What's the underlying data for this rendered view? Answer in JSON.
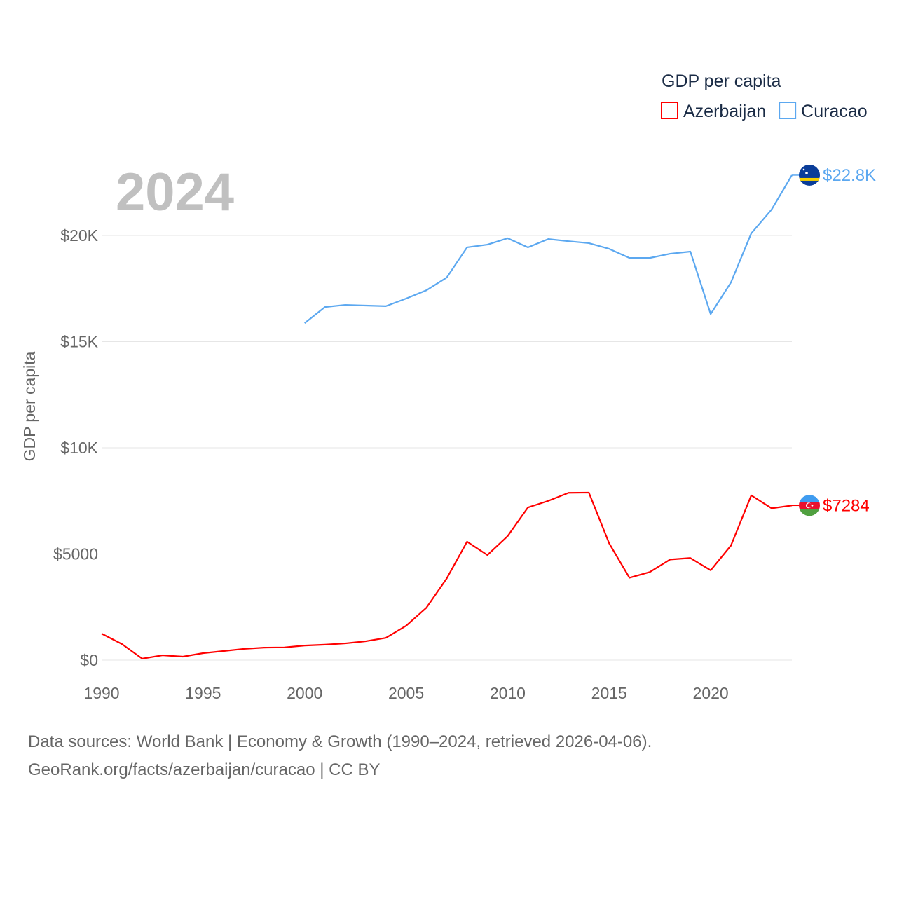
{
  "chart_data": {
    "type": "line",
    "title": "",
    "year_label": "2024",
    "ylabel": "GDP per capita",
    "xlabel": "",
    "xlim": [
      1990,
      2024
    ],
    "ylim": [
      0,
      23000
    ],
    "x_ticks": [
      "1990",
      "1995",
      "2000",
      "2005",
      "2010",
      "2015",
      "2020"
    ],
    "x_tick_values": [
      1990,
      1995,
      2000,
      2005,
      2010,
      2015,
      2020
    ],
    "y_ticks": [
      "$0",
      "$5000",
      "$10K",
      "$15K",
      "$20K"
    ],
    "y_tick_values": [
      0,
      5000,
      10000,
      15000,
      20000
    ],
    "grid": true,
    "legend": {
      "title": "GDP per capita",
      "placement": "top-right"
    },
    "series": [
      {
        "name": "Azerbaijan",
        "color": "#ff0000",
        "end_label": "$7284",
        "flag": "azerbaijan-flag",
        "x": [
          1990,
          1991,
          1992,
          1993,
          1994,
          1995,
          1996,
          1997,
          1998,
          1999,
          2000,
          2001,
          2002,
          2003,
          2004,
          2005,
          2006,
          2007,
          2008,
          2009,
          2010,
          2011,
          2012,
          2013,
          2014,
          2015,
          2016,
          2017,
          2018,
          2019,
          2020,
          2021,
          2022,
          2023,
          2024
        ],
        "values": [
          1250,
          760,
          70,
          230,
          165,
          330,
          430,
          530,
          590,
          600,
          690,
          730,
          790,
          890,
          1050,
          1620,
          2470,
          3850,
          5580,
          4950,
          5840,
          7190,
          7500,
          7880,
          7890,
          5500,
          3880,
          4150,
          4740,
          4810,
          4230,
          5400,
          7760,
          7150,
          7284
        ]
      },
      {
        "name": "Curacao",
        "color": "#5ca8f0",
        "end_label": "$22.8K",
        "flag": "curacao-flag",
        "x": [
          2000,
          2001,
          2002,
          2003,
          2004,
          2005,
          2006,
          2007,
          2008,
          2009,
          2010,
          2011,
          2012,
          2013,
          2014,
          2015,
          2016,
          2017,
          2018,
          2019,
          2020,
          2021,
          2022,
          2023,
          2024
        ],
        "values": [
          15870,
          16630,
          16730,
          16700,
          16670,
          17030,
          17420,
          18020,
          19440,
          19570,
          19870,
          19440,
          19830,
          19730,
          19640,
          19370,
          18940,
          18940,
          19140,
          19240,
          16300,
          17790,
          20100,
          21220,
          22840
        ]
      }
    ]
  },
  "footer": {
    "line1": "Data sources: World Bank | Economy & Growth (1990–2024, retrieved 2026-04-06).",
    "line2": "GeoRank.org/facts/azerbaijan/curacao | CC BY"
  }
}
